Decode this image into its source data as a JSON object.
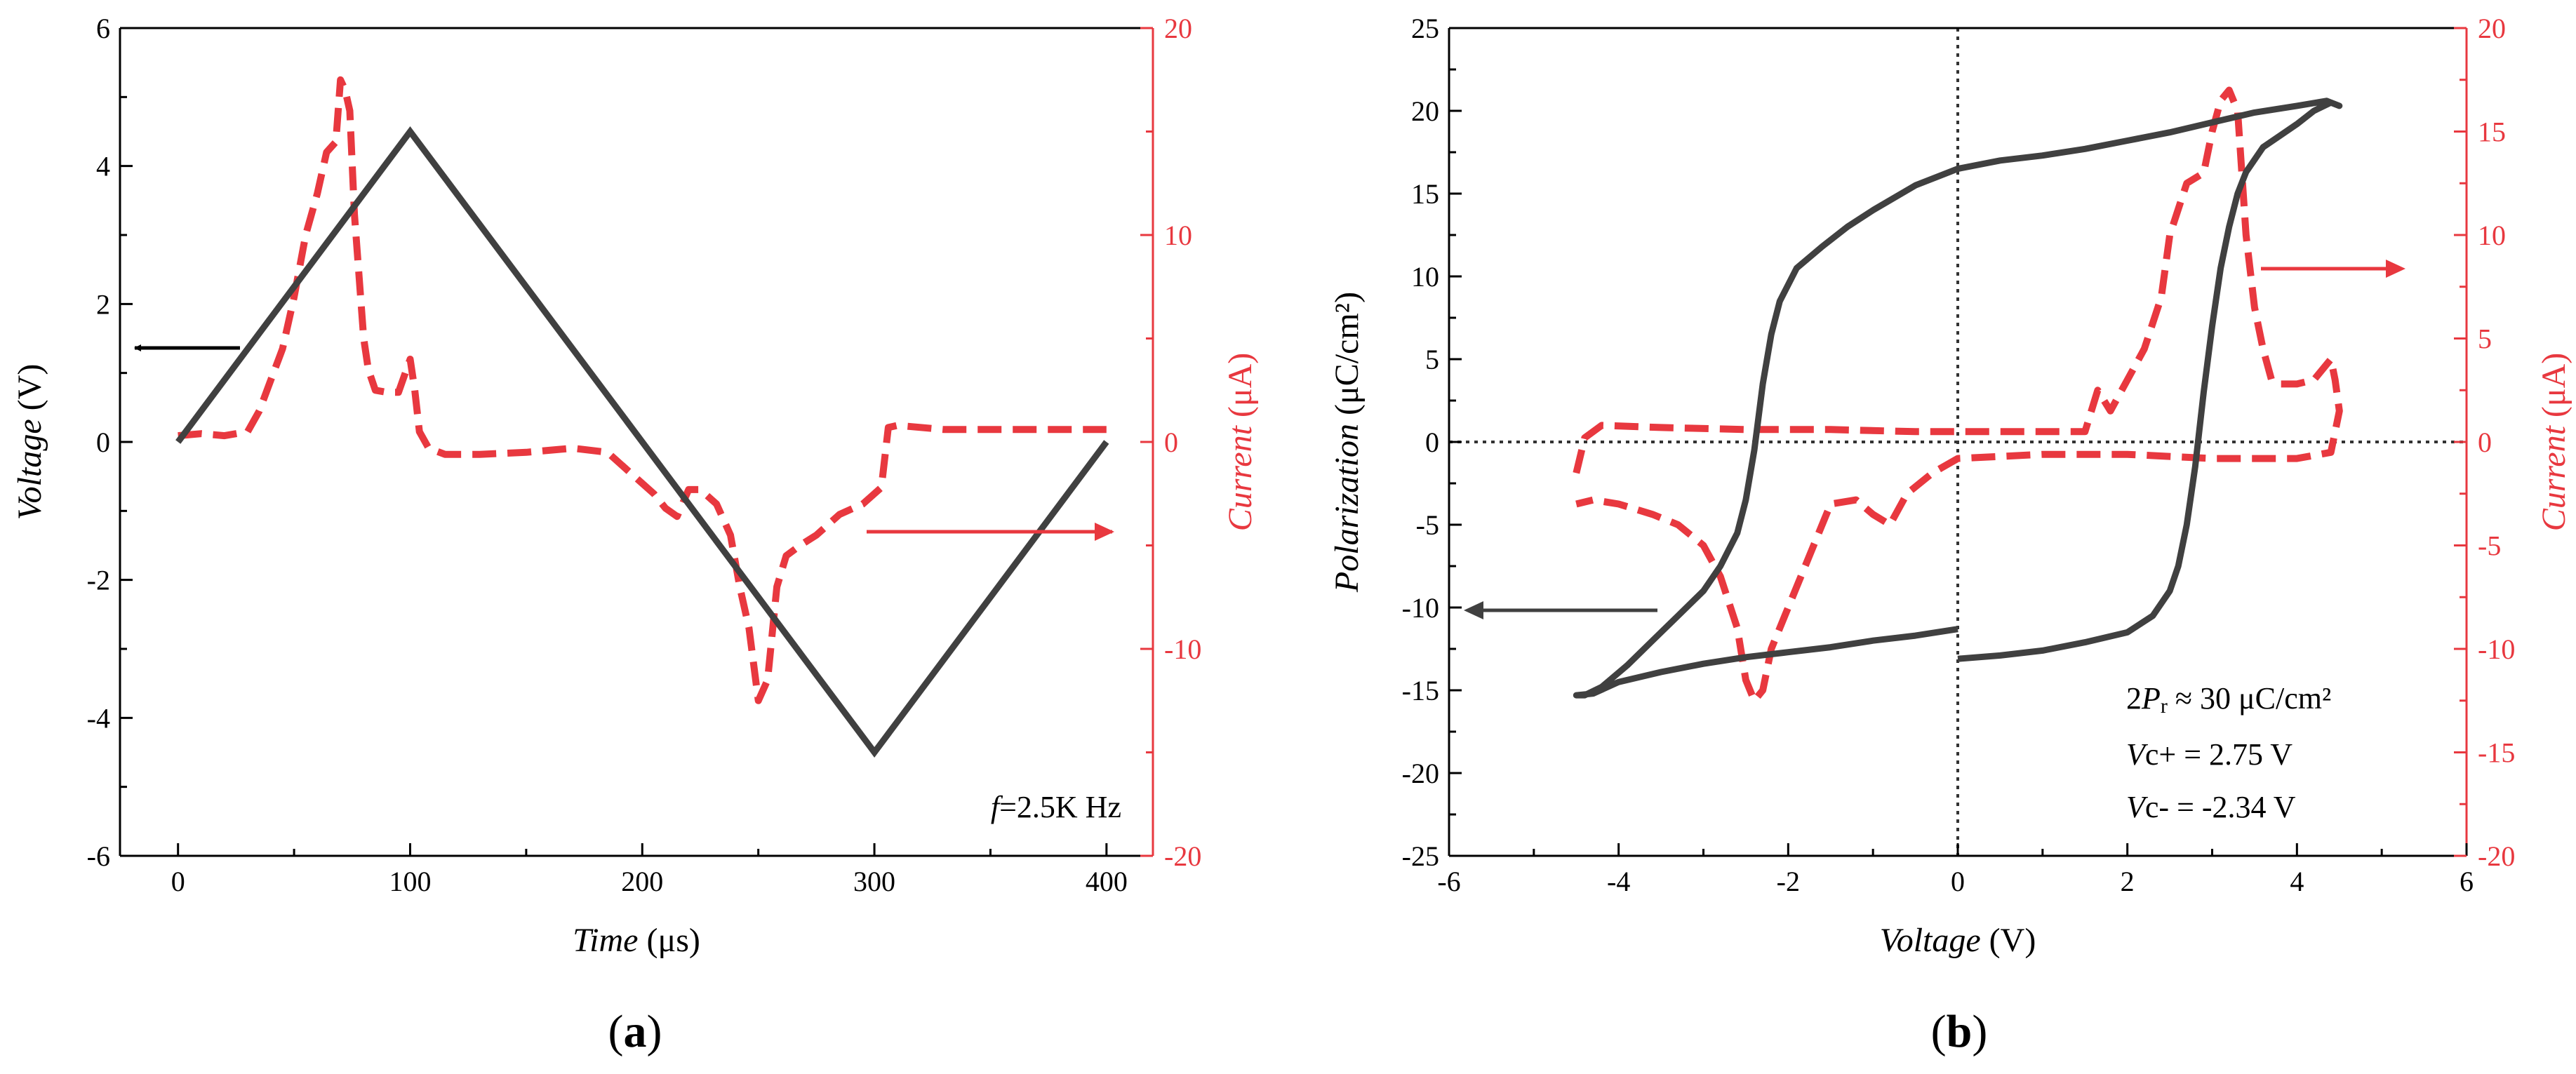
{
  "colors": {
    "voltage_line": "#404040",
    "current_line": "#e8383f",
    "axis": "#000000",
    "current_axis": "#e8383f"
  },
  "chart_data": [
    {
      "panel": "(a)",
      "panel_letter": "a",
      "type": "line",
      "x_axis": {
        "label_italic": "Time",
        "label_unit": "(μs)",
        "range": [
          -25,
          420
        ],
        "ticks": [
          0,
          100,
          200,
          300,
          400
        ],
        "tick_labels": [
          "0",
          "100",
          "200",
          "300",
          "400"
        ]
      },
      "y_axis_left": {
        "label_italic": "Voltage",
        "label_unit": "(V)",
        "range": [
          -6,
          6
        ],
        "ticks": [
          -6,
          -4,
          -2,
          0,
          2,
          4,
          6
        ],
        "tick_labels": [
          "-6",
          "-4",
          "-2",
          "0",
          "2",
          "4",
          "6"
        ]
      },
      "y_axis_right": {
        "label_italic": "Current",
        "label_unit": "(μA)",
        "range": [
          -20,
          20
        ],
        "ticks": [
          -20,
          -10,
          0,
          10,
          20
        ],
        "tick_labels": [
          "-20",
          "-10",
          "0",
          "10",
          "20"
        ]
      },
      "annotation": {
        "italic": "f",
        "text": "=2.5K Hz"
      },
      "series": [
        {
          "name": "Voltage",
          "axis": "left",
          "style": "solid",
          "x": [
            0,
            100,
            300,
            400
          ],
          "y": [
            0,
            4.5,
            -4.5,
            0
          ]
        },
        {
          "name": "Current",
          "axis": "right",
          "style": "dashed",
          "x": [
            0,
            10,
            20,
            30,
            35,
            40,
            45,
            50,
            55,
            60,
            64,
            68,
            70,
            72,
            74,
            76,
            78,
            80,
            82,
            85,
            90,
            95,
            100,
            102,
            104,
            108,
            115,
            130,
            150,
            170,
            185,
            195,
            205,
            210,
            215,
            220,
            225,
            232,
            238,
            242,
            246,
            250,
            254,
            258,
            262,
            268,
            275,
            285,
            295,
            300,
            303,
            306,
            310,
            330,
            360,
            390,
            400
          ],
          "y": [
            0.3,
            0.4,
            0.3,
            0.5,
            1.5,
            3,
            4.5,
            7,
            10,
            12,
            14,
            14.5,
            17.5,
            17,
            16,
            11,
            8,
            5,
            3.5,
            2.5,
            2.4,
            2.4,
            4,
            2.5,
            0.5,
            -0.3,
            -0.6,
            -0.6,
            -0.5,
            -0.3,
            -0.5,
            -1.5,
            -2.5,
            -3.2,
            -3.6,
            -2.3,
            -2.3,
            -3,
            -4.5,
            -7,
            -9,
            -12.5,
            -11.5,
            -7,
            -5.5,
            -5,
            -4.5,
            -3.5,
            -3,
            -2.5,
            -2.2,
            0.7,
            0.8,
            0.6,
            0.6,
            0.6,
            0.6
          ]
        }
      ]
    },
    {
      "panel": "(b)",
      "panel_letter": "b",
      "type": "line",
      "x_axis": {
        "label_italic": "Voltage",
        "label_unit": "(V)",
        "range": [
          -6,
          6
        ],
        "ticks": [
          -6,
          -4,
          -2,
          0,
          2,
          4,
          6
        ],
        "tick_labels": [
          "-6",
          "-4",
          "-2",
          "0",
          "2",
          "4",
          "6"
        ]
      },
      "y_axis_left": {
        "label_italic": "Polarization",
        "label_unit": "(μC/cm²)",
        "range": [
          -25,
          25
        ],
        "ticks": [
          -25,
          -20,
          -15,
          -10,
          -5,
          0,
          5,
          10,
          15,
          20,
          25
        ],
        "tick_labels": [
          "-25",
          "-20",
          "-15",
          "-10",
          "-5",
          "0",
          "5",
          "10",
          "15",
          "20",
          "25"
        ]
      },
      "y_axis_right": {
        "label_italic": "Current",
        "label_unit": "(μA)",
        "range": [
          -20,
          20
        ],
        "ticks": [
          -20,
          -15,
          -10,
          -5,
          0,
          5,
          10,
          15,
          20
        ],
        "tick_labels": [
          "-20",
          "-15",
          "-10",
          "-5",
          "0",
          "5",
          "10",
          "15",
          "20"
        ]
      },
      "annotations": [
        {
          "pre": "2",
          "italic": "P",
          "sub": "r",
          "text": " ≈ 30 μC/cm²"
        },
        {
          "italic": "V",
          "text": "c+ = 2.75 V"
        },
        {
          "italic": "V",
          "text": "c- = -2.34 V"
        }
      ],
      "series": [
        {
          "name": "Polarization",
          "axis": "left",
          "style": "solid",
          "x": [
            0,
            0.5,
            1,
            1.5,
            2,
            2.3,
            2.5,
            2.6,
            2.7,
            2.8,
            2.9,
            3.0,
            3.1,
            3.2,
            3.3,
            3.4,
            3.6,
            3.8,
            4.0,
            4.2,
            4.4,
            4.5,
            4.35,
            4.0,
            3.5,
            3.0,
            2.5,
            2.0,
            1.5,
            1.0,
            0.5,
            0,
            -0.5,
            -1.0,
            -1.3,
            -1.6,
            -1.9,
            -2.1,
            -2.2,
            -2.3,
            -2.4,
            -2.5,
            -2.6,
            -2.8,
            -3.0,
            -3.3,
            -3.6,
            -3.9,
            -4.2,
            -4.4,
            -4.5,
            -4.3,
            -4.0,
            -3.5,
            -3.0,
            -2.5,
            -2.0,
            -1.5,
            -1.0,
            -0.5,
            0
          ],
          "y": [
            -13.1,
            -12.9,
            -12.6,
            -12.1,
            -11.5,
            -10.5,
            -9.0,
            -7.5,
            -5.0,
            -1.5,
            3.0,
            7.0,
            10.5,
            13.0,
            15.0,
            16.3,
            17.8,
            18.5,
            19.2,
            20.0,
            20.5,
            20.3,
            20.6,
            20.3,
            19.9,
            19.3,
            18.7,
            18.2,
            17.7,
            17.3,
            17.0,
            16.5,
            15.5,
            14.0,
            13.0,
            11.8,
            10.5,
            8.5,
            6.5,
            3.5,
            -0.5,
            -3.5,
            -5.5,
            -7.5,
            -9.0,
            -10.5,
            -12.0,
            -13.5,
            -14.8,
            -15.3,
            -15.3,
            -15.2,
            -14.5,
            -13.9,
            -13.4,
            -13.0,
            -12.7,
            -12.4,
            -12.0,
            -11.7,
            -11.3
          ]
        },
        {
          "name": "Current",
          "axis": "right",
          "style": "dashed",
          "x": [
            -4.5,
            -4.4,
            -4.2,
            -3.5,
            -2.5,
            -1.5,
            -0.5,
            0.5,
            1.0,
            1.5,
            1.65,
            1.8,
            2.0,
            2.2,
            2.4,
            2.5,
            2.7,
            2.9,
            3.0,
            3.1,
            3.2,
            3.3,
            3.4,
            3.5,
            3.6,
            3.7,
            3.8,
            4.0,
            4.2,
            4.4,
            4.45,
            4.5,
            4.4,
            4.0,
            3.0,
            2.0,
            1.0,
            0,
            -0.3,
            -0.6,
            -0.8,
            -1.0,
            -1.2,
            -1.5,
            -1.7,
            -1.9,
            -2.0,
            -2.2,
            -2.3,
            -2.4,
            -2.5,
            -2.6,
            -2.8,
            -3.0,
            -3.3,
            -3.6,
            -4.0,
            -4.3,
            -4.5
          ],
          "y": [
            -1.5,
            0.2,
            0.8,
            0.7,
            0.6,
            0.6,
            0.5,
            0.5,
            0.5,
            0.5,
            2.5,
            1.5,
            3.0,
            4.5,
            7.0,
            10.0,
            12.5,
            13.0,
            15.0,
            16.5,
            17.0,
            16.0,
            10.0,
            6.5,
            4.5,
            3.0,
            2.8,
            2.8,
            3.0,
            4.0,
            3.0,
            1.5,
            -0.5,
            -0.8,
            -0.8,
            -0.6,
            -0.6,
            -0.8,
            -1.5,
            -2.5,
            -4.0,
            -3.5,
            -2.8,
            -3.0,
            -5.0,
            -7.0,
            -8.0,
            -10.0,
            -12.0,
            -12.5,
            -11.5,
            -9.0,
            -6.5,
            -5.0,
            -4.0,
            -3.5,
            -3.0,
            -2.8,
            -3.0
          ]
        }
      ]
    }
  ]
}
